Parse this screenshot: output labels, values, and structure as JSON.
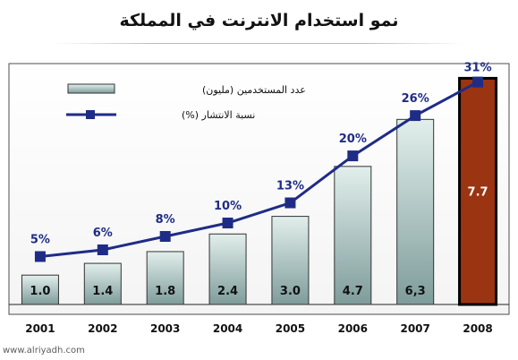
{
  "chart_data": {
    "type": "bar",
    "title": "نمو استخدام الانترنت في المملكة",
    "categories": [
      "2001",
      "2002",
      "2003",
      "2004",
      "2005",
      "2006",
      "2007",
      "2008"
    ],
    "series": [
      {
        "name": "عدد المستخدمين (مليون)",
        "type": "bar",
        "values": [
          1.0,
          1.4,
          1.8,
          2.4,
          3.0,
          4.7,
          6.3,
          7.7
        ],
        "labels": [
          "1.0",
          "1.4",
          "1.8",
          "2.4",
          "3.0",
          "4.7",
          "6,3",
          "7.7"
        ]
      },
      {
        "name": "نسبة الانتشار (%)",
        "type": "line",
        "values": [
          5,
          6,
          8,
          10,
          13,
          20,
          26,
          31
        ],
        "labels": [
          "5%",
          "6%",
          "8%",
          "10%",
          "13%",
          "20%",
          "26%",
          "31%"
        ]
      }
    ],
    "bar_ylim": [
      0,
      8.2
    ],
    "line_ylim": [
      -2.14,
      33.75
    ],
    "highlight_category": "2008",
    "legend_position": "top-left",
    "grid": false,
    "colors": {
      "bar_fill_top": "#e2efec",
      "bar_fill_bottom": "#7e9c9b",
      "bar_highlight": "#9a3411",
      "line": "#1f2c86",
      "marker": "#1f2c86",
      "line_label": "#1f2c86",
      "frame": "#4d4d4d"
    }
  },
  "watermark": "www.alriyadh.com"
}
